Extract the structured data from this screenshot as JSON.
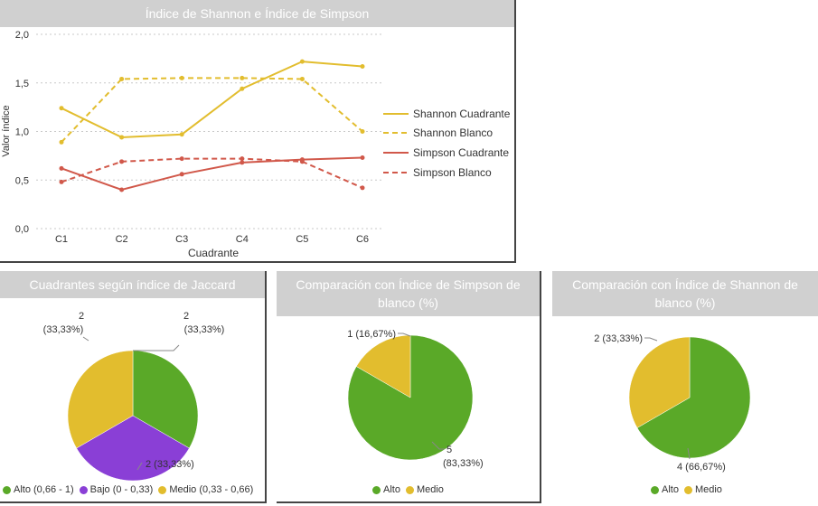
{
  "charts": {
    "line": {
      "title": "Índice de Shannon e Índice de Simpson",
      "xlabel": "Cuadrante",
      "ylabel": "Valor índice",
      "yticks": [
        "2,0",
        "1,5",
        "1,0",
        "0,5",
        "0,0"
      ],
      "legend": [
        "Shannon Cuadrante",
        "Shannon Blanco",
        "Simpson Cuadrante",
        "Simpson Blanco"
      ]
    },
    "jaccard": {
      "title": "Cuadrantes según índice de Jaccard",
      "labels": [
        "2",
        "(33,33%)",
        "2",
        "(33,33%)",
        "2 (33,33%)"
      ],
      "legend": [
        "Alto (0,66 - 1)",
        "Bajo (0 - 0,33)",
        "Medio (0,33 - 0,66)"
      ]
    },
    "simpson": {
      "title_line1": "Comparación con Índice de Simpson de",
      "title_line2": "blanco (%)",
      "labels": [
        "1 (16,67%)",
        "5",
        "(83,33%)"
      ],
      "legend": [
        "Alto",
        "Medio"
      ]
    },
    "shannon": {
      "title_line1": "Comparación con Índice de Shannon de",
      "title_line2": "blanco (%)",
      "labels": [
        "2 (33,33%)",
        "4 (66,67%)"
      ],
      "legend": [
        "Alto",
        "Medio"
      ]
    }
  },
  "colors": {
    "shannon": "#e2bd2e",
    "simpson": "#d1584a",
    "alto": "#5aa928",
    "bajo": "#8a3fd6",
    "medio": "#e2bd2e"
  },
  "chart_data": [
    {
      "type": "line",
      "title": "Índice de Shannon e Índice de Simpson",
      "xlabel": "Cuadrante",
      "ylabel": "Valor índice",
      "categories": [
        "C1",
        "C2",
        "C3",
        "C4",
        "C5",
        "C6"
      ],
      "ylim": [
        0,
        2
      ],
      "grid": true,
      "legend_position": "right",
      "series": [
        {
          "name": "Shannon Cuadrante",
          "values": [
            1.24,
            0.94,
            0.97,
            1.44,
            1.72,
            1.67
          ],
          "dashed": false
        },
        {
          "name": "Shannon Blanco",
          "values": [
            0.89,
            1.54,
            1.55,
            1.55,
            1.54,
            1.0
          ],
          "dashed": true
        },
        {
          "name": "Simpson Cuadrante",
          "values": [
            0.62,
            0.4,
            0.56,
            0.68,
            0.71,
            0.73
          ],
          "dashed": false
        },
        {
          "name": "Simpson Blanco",
          "values": [
            0.48,
            0.69,
            0.72,
            0.72,
            0.69,
            0.42
          ],
          "dashed": true
        }
      ]
    },
    {
      "type": "pie",
      "title": "Cuadrantes según índice de Jaccard",
      "categories": [
        "Alto (0,66 - 1)",
        "Bajo (0 - 0,33)",
        "Medio (0,33 - 0,66)"
      ],
      "values": [
        2,
        2,
        2
      ],
      "percent": [
        33.33,
        33.33,
        33.33
      ],
      "legend_position": "bottom"
    },
    {
      "type": "pie",
      "title": "Comparación con Índice de Simpson de blanco (%)",
      "categories": [
        "Alto",
        "Medio"
      ],
      "values": [
        5,
        1
      ],
      "percent": [
        83.33,
        16.67
      ],
      "legend_position": "bottom"
    },
    {
      "type": "pie",
      "title": "Comparación con Índice de Shannon de blanco (%)",
      "categories": [
        "Alto",
        "Medio"
      ],
      "values": [
        4,
        2
      ],
      "percent": [
        66.67,
        33.33
      ],
      "legend_position": "bottom"
    }
  ]
}
